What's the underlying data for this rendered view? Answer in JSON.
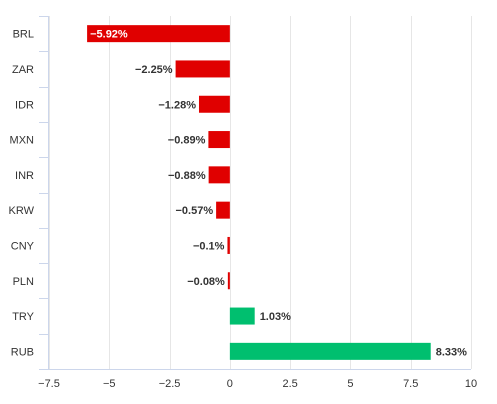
{
  "chart_data": {
    "type": "bar",
    "orientation": "horizontal",
    "categories": [
      "BRL",
      "ZAR",
      "IDR",
      "MXN",
      "INR",
      "KRW",
      "CNY",
      "PLN",
      "TRY",
      "RUB"
    ],
    "values": [
      -5.92,
      -2.25,
      -1.28,
      -0.89,
      -0.88,
      -0.57,
      -0.1,
      -0.08,
      1.03,
      8.33
    ],
    "data_labels": [
      "−5.92%",
      "−2.25%",
      "−1.28%",
      "−0.89%",
      "−0.88%",
      "−0.57%",
      "−0.1%",
      "−0.08%",
      "1.03%",
      "8.33%"
    ],
    "x_ticks": [
      -7.5,
      -5,
      -2.5,
      0,
      2.5,
      5,
      7.5,
      10
    ],
    "x_tick_labels": [
      "−7.5",
      "−5",
      "−2.5",
      "0",
      "2.5",
      "5",
      "7.5",
      "10"
    ],
    "xlim": [
      -7.5,
      10
    ],
    "title": "",
    "xlabel": "",
    "ylabel": "",
    "grid": "vertical",
    "colors": {
      "negative": "#e00000",
      "positive": "#00bf6f",
      "grid": "#e6e6e6",
      "axis": "#ccd6eb",
      "text": "#333333"
    }
  }
}
